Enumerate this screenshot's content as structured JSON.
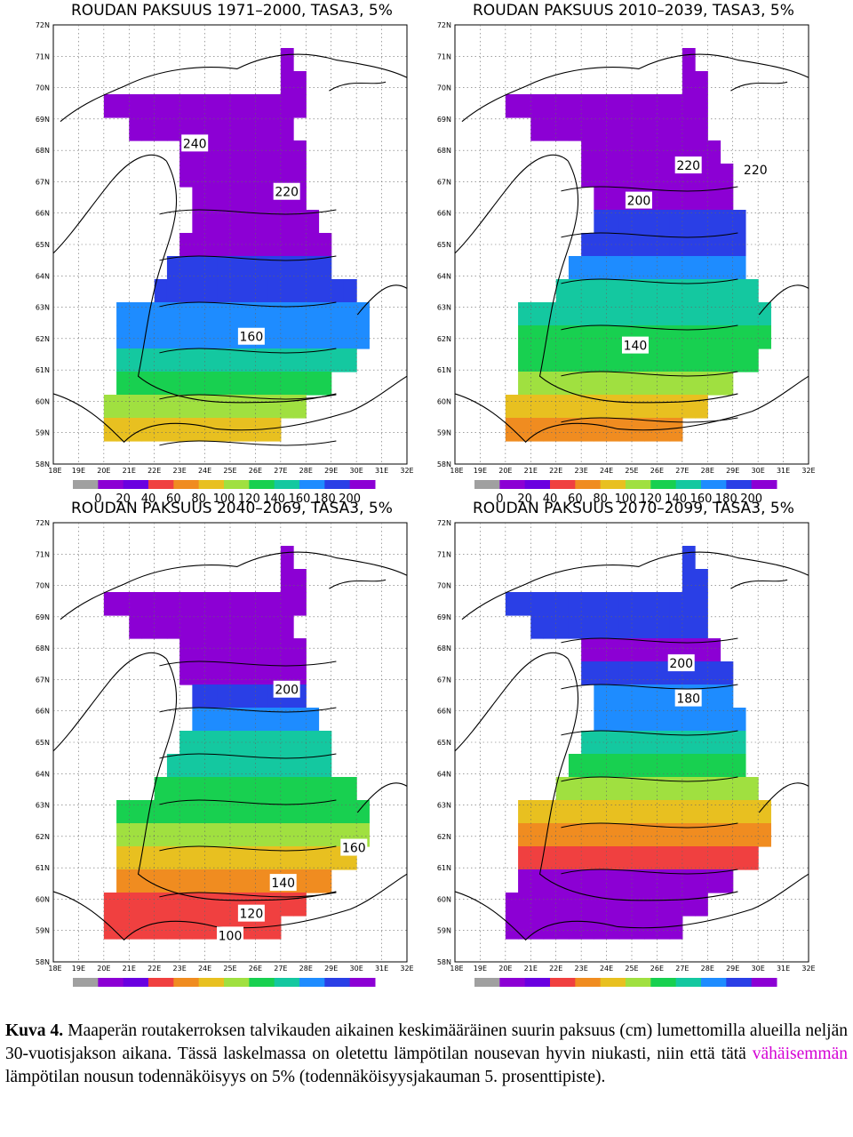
{
  "panels": [
    {
      "title": "ROUDAN PAKSUUS 1971–2000, TASA3, 5%",
      "contour_labels": [
        "240",
        "220",
        "160"
      ],
      "grid": [
        "............................",
        "..................X.........",
        "..................XX........",
        "....XXXXXXXXXXXXXXXX........",
        "......XXXXXXXXXXXXX.........",
        "..........XXXXXXXXXX........",
        "..........XXXXXXXXXX........",
        "...........XXXXXXXXX........",
        "...........XXXXXXXXXX.......",
        "..........XXXXXXXXXXXX......",
        ".........XXXXXXXXXXXXX......",
        "........XXXXXXXXXXXXXXXX....",
        ".....XXXXXXXXXXXXXXXXXXXX...",
        ".....XXXXXXXXXXXXXXXXXXXX...",
        ".....XXXXXXXXXXXXXXXXXXX....",
        ".....XXXXXXXXXXXXXXXXX......",
        "....XXXXXXXXXXXXXXXX........",
        "....XXXXXXXXXXXXXX..........",
        "............................"
      ],
      "bands": [
        [
          1,
          8,
          "#8c00d4"
        ],
        [
          8,
          9,
          "#8c00d4"
        ],
        [
          9,
          10,
          "#8c00d4"
        ],
        [
          10,
          11,
          "#2a3fe6"
        ],
        [
          11,
          12,
          "#2a3fe6"
        ],
        [
          12,
          13,
          "#1e8cff"
        ],
        [
          13,
          14,
          "#1e8cff"
        ],
        [
          14,
          15,
          "#14c8a0"
        ],
        [
          15,
          16,
          "#18d050"
        ],
        [
          16,
          17,
          "#a0e040"
        ],
        [
          17,
          18,
          "#e8c020"
        ],
        [
          18,
          19,
          "#e8c020"
        ]
      ]
    },
    {
      "title": "ROUDAN PAKSUUS 2010–2039, TASA3, 5%",
      "contour_labels": [
        "220",
        "220",
        "200",
        "140"
      ],
      "grid": [
        "............................",
        "..................X.........",
        "..................XX........",
        "....XXXXXXXXXXXXXXXX........",
        "......XXXXXXXXXXXXXX........",
        "..........XXXXXXXXXXX.......",
        "..........XXXXXXXXXXXX......",
        "...........XXXXXXXXXXX......",
        "...........XXXXXXXXXXXX.....",
        "..........XXXXXXXXXXXXX.....",
        ".........XXXXXXXXXXXXXX.....",
        "........XXXXXXXXXXXXXXXX....",
        ".....XXXXXXXXXXXXXXXXXXXX...",
        ".....XXXXXXXXXXXXXXXXXXXX...",
        ".....XXXXXXXXXXXXXXXXXXX....",
        ".....XXXXXXXXXXXXXXXXX......",
        "....XXXXXXXXXXXXXXXX........",
        "....XXXXXXXXXXXXXX..........",
        "............................"
      ],
      "bands": [
        [
          1,
          7,
          "#8c00d4"
        ],
        [
          7,
          8,
          "#8c00d4"
        ],
        [
          8,
          9,
          "#2a3fe6"
        ],
        [
          9,
          10,
          "#2a3fe6"
        ],
        [
          10,
          11,
          "#1e8cff"
        ],
        [
          11,
          12,
          "#14c8a0"
        ],
        [
          12,
          13,
          "#14c8a0"
        ],
        [
          13,
          14,
          "#18d050"
        ],
        [
          14,
          15,
          "#18d050"
        ],
        [
          15,
          16,
          "#a0e040"
        ],
        [
          16,
          17,
          "#e8c020"
        ],
        [
          17,
          19,
          "#f08c20"
        ]
      ]
    },
    {
      "title": "ROUDAN PAKSUUS 2040–2069, TASA3, 5%",
      "contour_labels": [
        "200",
        "160",
        "140",
        "120",
        "100"
      ],
      "grid": [
        "............................",
        "..................X.........",
        "..................XX........",
        "....XXXXXXXXXXXXXXXX........",
        "......XXXXXXXXXXXXX.........",
        "..........XXXXXXXXXX........",
        "..........XXXXXXXXXX........",
        "...........XXXXXXXXX........",
        "...........XXXXXXXXXX.......",
        "..........XXXXXXXXXXXX......",
        ".........XXXXXXXXXXXXX......",
        "........XXXXXXXXXXXXXXXX....",
        ".....XXXXXXXXXXXXXXXXXXXX...",
        ".....XXXXXXXXXXXXXXXXXXXX...",
        ".....XXXXXXXXXXXXXXXXXXX....",
        ".....XXXXXXXXXXXXXXXXX......",
        "....XXXXXXXXXXXXXXXX........",
        "....XXXXXXXXXXXXXX..........",
        "............................"
      ],
      "bands": [
        [
          1,
          6,
          "#8c00d4"
        ],
        [
          6,
          7,
          "#8c00d4"
        ],
        [
          7,
          8,
          "#2a3fe6"
        ],
        [
          8,
          9,
          "#1e8cff"
        ],
        [
          9,
          10,
          "#14c8a0"
        ],
        [
          10,
          11,
          "#14c8a0"
        ],
        [
          11,
          12,
          "#18d050"
        ],
        [
          12,
          13,
          "#18d050"
        ],
        [
          13,
          14,
          "#a0e040"
        ],
        [
          14,
          15,
          "#e8c020"
        ],
        [
          15,
          16,
          "#f08c20"
        ],
        [
          16,
          19,
          "#f04040"
        ]
      ]
    },
    {
      "title": "ROUDAN PAKSUUS 2070–2099, TASA3, 5%",
      "contour_labels": [
        "200",
        "180"
      ],
      "grid": [
        "............................",
        "..................X.........",
        "..................XX........",
        "....XXXXXXXXXXXXXXXX........",
        "......XXXXXXXXXXXXXX........",
        "..........XXXXXXXXXXX.......",
        "..........XXXXXXXXXXXX......",
        "...........XXXXXXXXXXX......",
        "...........XXXXXXXXXXXX.....",
        "..........XXXXXXXXXXXXX.....",
        ".........XXXXXXXXXXXXXX.....",
        "........XXXXXXXXXXXXXXXX....",
        ".....XXXXXXXXXXXXXXXXXXXX...",
        ".....XXXXXXXXXXXXXXXXXXXX...",
        ".....XXXXXXXXXXXXXXXXXXX....",
        ".....XXXXXXXXXXXXXXXXX......",
        "....XXXXXXXXXXXXXXXX........",
        "....XXXXXXXXXXXXXX..........",
        "............................"
      ],
      "bands": [
        [
          1,
          5,
          "#2a3fe6"
        ],
        [
          5,
          6,
          "#8c00d4"
        ],
        [
          6,
          7,
          "#2a3fe6"
        ],
        [
          7,
          8,
          "#1e8cff"
        ],
        [
          8,
          9,
          "#1e8cff"
        ],
        [
          9,
          10,
          "#14c8a0"
        ],
        [
          10,
          11,
          "#18d050"
        ],
        [
          11,
          12,
          "#a0e040"
        ],
        [
          12,
          13,
          "#e8c020"
        ],
        [
          13,
          14,
          "#f08c20"
        ],
        [
          14,
          15,
          "#f04040"
        ],
        [
          15,
          19,
          "#8c00d4"
        ]
      ]
    }
  ],
  "lat_labels": [
    "72N",
    "71N",
    "70N",
    "69N",
    "68N",
    "67N",
    "66N",
    "65N",
    "64N",
    "63N",
    "62N",
    "61N",
    "60N",
    "59N",
    "58N"
  ],
  "lon_labels": [
    "18E",
    "19E",
    "20E",
    "21E",
    "22E",
    "23E",
    "24E",
    "25E",
    "26E",
    "27E",
    "28E",
    "29E",
    "30E",
    "31E",
    "32E"
  ],
  "colorbar": {
    "labels": [
      "0",
      "20",
      "40",
      "60",
      "80",
      "100",
      "120",
      "140",
      "160",
      "180",
      "200"
    ],
    "colors": [
      "#a0a0a0",
      "#8c00d4",
      "#6a00e0",
      "#f04040",
      "#f08c20",
      "#e8c020",
      "#a0e040",
      "#18d050",
      "#14c8a0",
      "#1e8cff",
      "#2a3fe6",
      "#8c00d4"
    ]
  },
  "caption": {
    "label": "Kuva 4.",
    "text1": " Maaperän routakerroksen talvikauden aikainen keskimääräinen suurin paksuus (cm) lumettomilla alueilla neljän 30-vuotisjakson aikana. Tässä laskelmassa on oletettu lämpötilan nousevan hyvin niukasti, niin että tätä ",
    "highlight": "vähäisemmän",
    "text2": " lämpötilan nousun todennäköisyys on 5% (todennäköisyysjakauman 5. prosenttipiste)."
  }
}
